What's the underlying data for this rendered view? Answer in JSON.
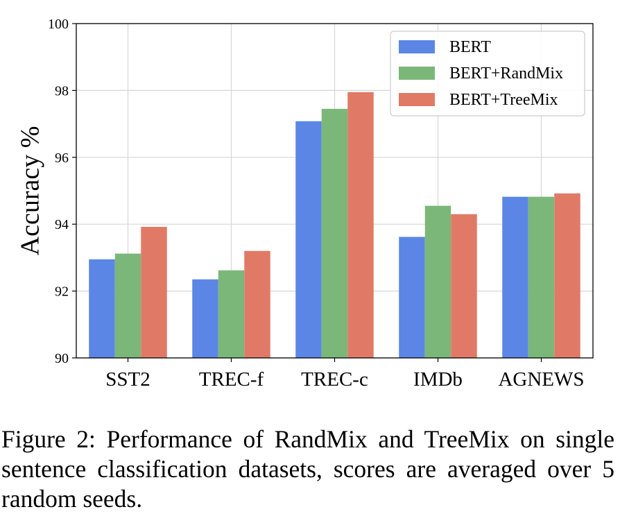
{
  "chart_data": {
    "type": "bar",
    "categories": [
      "SST2",
      "TREC-f",
      "TREC-c",
      "IMDb",
      "AGNEWS"
    ],
    "series": [
      {
        "name": "BERT",
        "color": "#5b86e5",
        "values": [
          92.95,
          92.35,
          97.08,
          93.62,
          94.82
        ]
      },
      {
        "name": "BERT+RandMix",
        "color": "#7bb779",
        "values": [
          93.12,
          92.62,
          97.45,
          94.55,
          94.82
        ]
      },
      {
        "name": "BERT+TreeMix",
        "color": "#e07a66",
        "values": [
          93.92,
          93.2,
          97.95,
          94.3,
          94.92
        ]
      }
    ],
    "ylabel": "Accuracy %",
    "xlabel": "",
    "ylim": [
      90,
      100
    ],
    "yticks": [
      "90",
      "92",
      "94",
      "96",
      "98",
      "100"
    ],
    "grid": true,
    "legend_position": "top-right"
  },
  "caption": "Figure 2: Performance of RandMix and TreeMix on single sentence classification datasets, scores are averaged over 5 random seeds."
}
